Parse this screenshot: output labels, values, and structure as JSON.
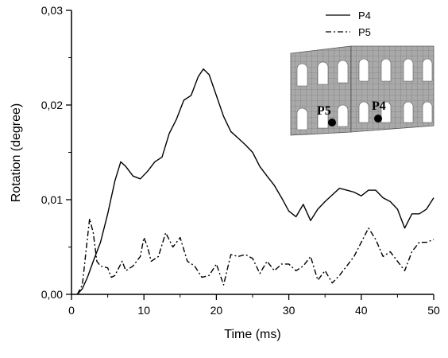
{
  "chart_data": {
    "type": "line",
    "title": "",
    "xlabel": "Time (ms)",
    "ylabel": "Rotation (degree)",
    "xlim": [
      0,
      50
    ],
    "ylim": [
      0,
      0.03
    ],
    "x_ticks": [
      0,
      10,
      20,
      30,
      40,
      50
    ],
    "x_tick_labels": [
      "0",
      "10",
      "20",
      "30",
      "40",
      "50"
    ],
    "y_ticks": [
      0,
      0.01,
      0.02,
      0.03
    ],
    "y_tick_labels": [
      "0,00",
      "0,01",
      "0,02",
      "0,03"
    ],
    "grid": false,
    "legend_position": "top-right",
    "series": [
      {
        "name": "P4",
        "style": "solid",
        "color": "#000000",
        "x": [
          0.8,
          1.5,
          2.2,
          3.0,
          4.0,
          5.0,
          6.0,
          6.8,
          7.5,
          8.5,
          9.5,
          10.5,
          11.5,
          12.5,
          13.5,
          14.5,
          15.5,
          16.5,
          17.5,
          18.2,
          19.0,
          20.0,
          21.0,
          22.0,
          23.0,
          24.0,
          25.0,
          26.0,
          27.0,
          28.0,
          29.0,
          30.0,
          31.0,
          32.0,
          33.0,
          34.0,
          35.0,
          36.0,
          37.0,
          38.0,
          39.0,
          40.0,
          41.0,
          42.0,
          43.0,
          44.0,
          45.0,
          46.0,
          47.0,
          48.0,
          49.0,
          50.0
        ],
        "y": [
          0.0,
          0.0006,
          0.0018,
          0.0035,
          0.0055,
          0.0085,
          0.012,
          0.014,
          0.0135,
          0.0125,
          0.0122,
          0.013,
          0.014,
          0.0145,
          0.017,
          0.0185,
          0.0205,
          0.021,
          0.023,
          0.0238,
          0.0232,
          0.021,
          0.0188,
          0.0172,
          0.0165,
          0.0158,
          0.015,
          0.0135,
          0.0125,
          0.0115,
          0.0102,
          0.0088,
          0.0082,
          0.0095,
          0.0078,
          0.009,
          0.0098,
          0.0105,
          0.0112,
          0.011,
          0.0108,
          0.0104,
          0.011,
          0.011,
          0.0102,
          0.0098,
          0.009,
          0.007,
          0.0085,
          0.0085,
          0.009,
          0.0102
        ]
      },
      {
        "name": "P5",
        "style": "dash-dot",
        "color": "#000000",
        "x": [
          0.8,
          1.5,
          2.0,
          2.5,
          3.0,
          3.5,
          4.0,
          5.0,
          5.5,
          6.0,
          7.0,
          7.5,
          8.5,
          9.5,
          10.0,
          10.5,
          11.0,
          12.0,
          13.0,
          14.0,
          15.0,
          16.0,
          17.0,
          18.0,
          19.0,
          20.0,
          21.0,
          22.0,
          23.0,
          24.0,
          25.0,
          26.0,
          27.0,
          28.0,
          29.0,
          30.0,
          31.0,
          32.0,
          33.0,
          34.0,
          35.0,
          36.0,
          37.0,
          38.0,
          39.0,
          40.0,
          41.0,
          42.0,
          43.0,
          44.0,
          45.0,
          46.0,
          47.0,
          48.0,
          49.0,
          50.0
        ],
        "y": [
          0.0,
          0.001,
          0.0045,
          0.008,
          0.0065,
          0.0035,
          0.003,
          0.0028,
          0.0018,
          0.002,
          0.0035,
          0.0025,
          0.003,
          0.004,
          0.006,
          0.005,
          0.0035,
          0.004,
          0.0065,
          0.005,
          0.006,
          0.0035,
          0.003,
          0.0018,
          0.002,
          0.0032,
          0.001,
          0.0042,
          0.004,
          0.0042,
          0.0038,
          0.0022,
          0.0035,
          0.0025,
          0.0032,
          0.0032,
          0.0025,
          0.003,
          0.004,
          0.0015,
          0.0025,
          0.0012,
          0.002,
          0.003,
          0.004,
          0.0055,
          0.007,
          0.0058,
          0.004,
          0.0045,
          0.0035,
          0.0025,
          0.0045,
          0.0055,
          0.0055,
          0.0058
        ]
      }
    ],
    "inset": {
      "labels": [
        "P5",
        "P4"
      ]
    }
  }
}
